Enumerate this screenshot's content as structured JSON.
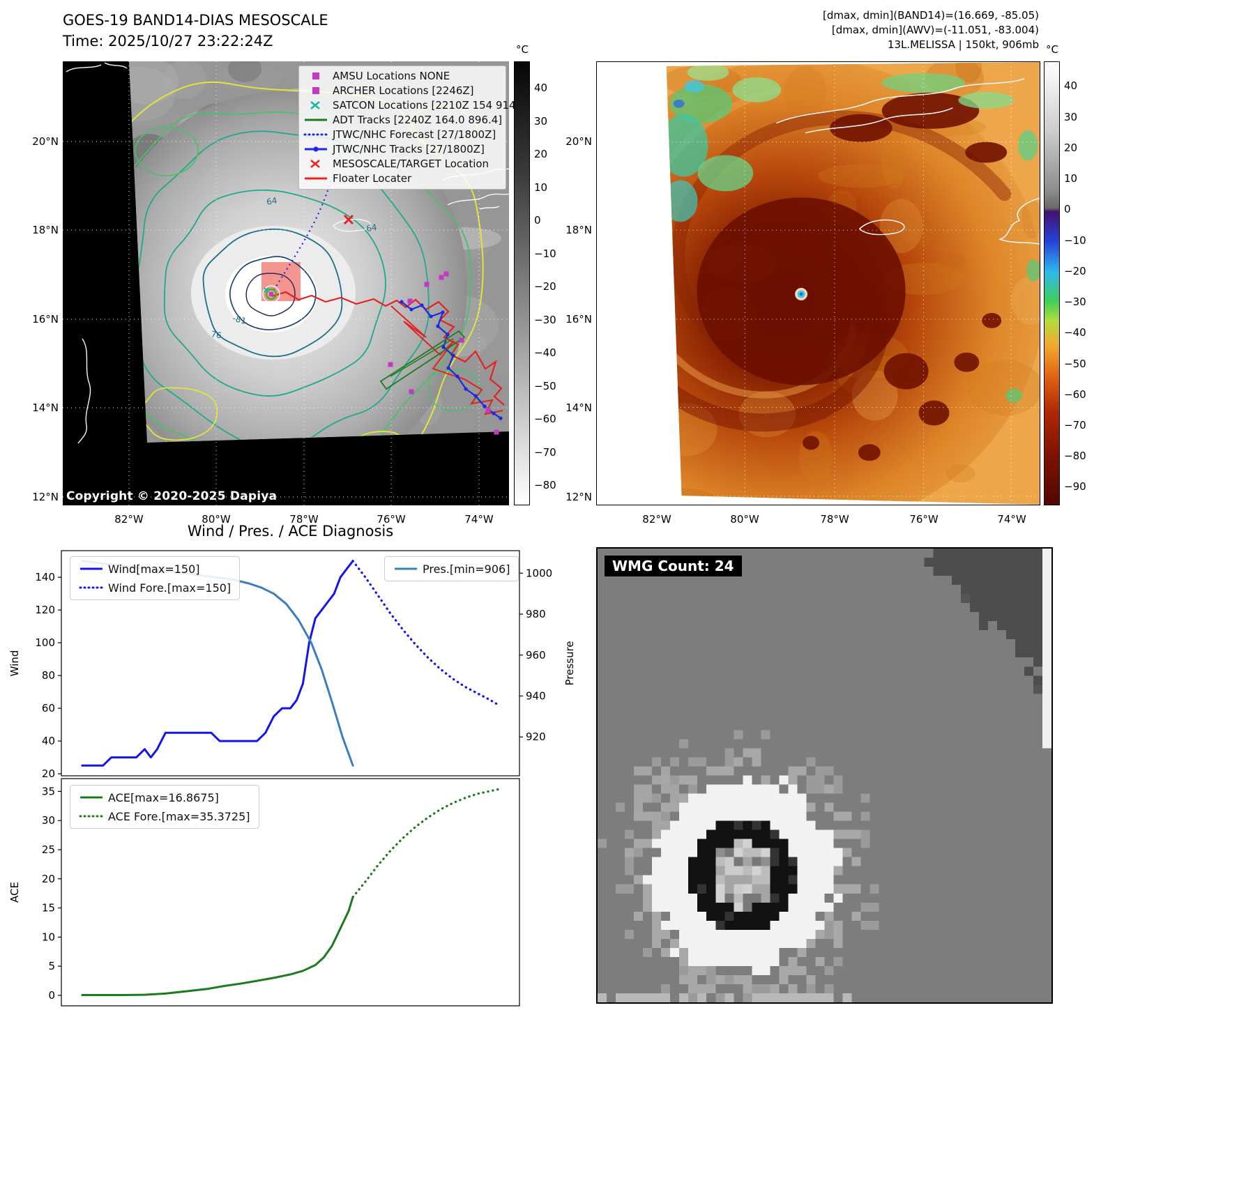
{
  "header_left": {
    "title": "GOES-19 BAND14-DIAS MESOSCALE",
    "time": "Time: 2025/10/27 23:22:24Z"
  },
  "header_right": {
    "line1": "[dmax, dmin](BAND14)=(16.669, -85.05)",
    "line2": "[dmax, dmin](AWV)=(-11.051, -83.004)",
    "line3": "13L.MELISSA | 150kt, 906mb"
  },
  "map_left": {
    "copyright": "Copyright © 2020-2025 Dapiya",
    "lat_ticks": [
      "20°N",
      "18°N",
      "16°N",
      "14°N",
      "12°N"
    ],
    "lon_ticks": [
      "82°W",
      "80°W",
      "78°W",
      "76°W",
      "74°W"
    ],
    "contour_labels": [
      "64",
      "-81",
      "76",
      "64"
    ],
    "legend": [
      {
        "label": "AMSU Locations NONE",
        "marker": "square",
        "color": "#c339c3"
      },
      {
        "label": "ARCHER Locations [2246Z]",
        "marker": "square",
        "color": "#c339c3"
      },
      {
        "label": "SATCON Locations [2210Z 154 914]",
        "marker": "x",
        "color": "#17b8a6"
      },
      {
        "label": "ADT Tracks [2240Z 164.0 896.4]",
        "marker": "line",
        "color": "#1f7a1f"
      },
      {
        "label": "JTWC/NHC Forecast [27/1800Z]",
        "marker": "dotted",
        "color": "#2222ee"
      },
      {
        "label": "JTWC/NHC Tracks [27/1800Z]",
        "marker": "line-dot",
        "color": "#2222ee"
      },
      {
        "label": "MESOSCALE/TARGET Location",
        "marker": "x",
        "color": "#ee2222"
      },
      {
        "label": "Floater Locater",
        "marker": "line",
        "color": "#ee2222"
      }
    ],
    "colorbar": {
      "unit": "°C",
      "vmax": 48,
      "vmin": -86,
      "ticks": [
        40,
        30,
        20,
        10,
        0,
        -10,
        -20,
        -30,
        -40,
        -50,
        -60,
        -70,
        -80
      ]
    }
  },
  "map_right": {
    "lat_ticks": [
      "20°N",
      "18°N",
      "16°N",
      "14°N",
      "12°N"
    ],
    "lon_ticks": [
      "82°W",
      "80°W",
      "78°W",
      "76°W",
      "74°W"
    ],
    "colorbar": {
      "unit": "°C",
      "vmax": 48,
      "vmin": -96,
      "ticks": [
        40,
        30,
        20,
        10,
        0,
        -10,
        -20,
        -30,
        -40,
        -50,
        -60,
        -70,
        -80,
        -90
      ]
    }
  },
  "charts_title": "Wind / Pres. / ACE Diagnosis",
  "chart_data": [
    {
      "type": "line",
      "ylabel_left": "Wind",
      "ylabel_right": "Pressure",
      "xlim": [
        -0.05,
        1.05
      ],
      "ylim_left": [
        18.75,
        156.25
      ],
      "ylim_right": [
        901,
        1011
      ],
      "yticks_left": [
        20,
        40,
        60,
        80,
        100,
        120,
        140
      ],
      "yticks_right": [
        920,
        940,
        960,
        980,
        1000
      ],
      "legend_left": [
        {
          "label": "Wind[max=150]",
          "style": "line",
          "color": "#1515e8"
        },
        {
          "label": "Wind Fore.[max=150]",
          "style": "dotted",
          "color": "#1515e8"
        }
      ],
      "legend_right": [
        {
          "label": "Pres.[min=906]",
          "style": "line",
          "color": "#3a7ebf"
        }
      ],
      "series": [
        {
          "name": "Wind",
          "axis": "left",
          "style": "solid",
          "color": "#1515e8",
          "width": 3,
          "x": [
            0,
            0.025,
            0.05,
            0.07,
            0.09,
            0.11,
            0.13,
            0.15,
            0.165,
            0.18,
            0.2,
            0.22,
            0.25,
            0.28,
            0.31,
            0.33,
            0.36,
            0.39,
            0.42,
            0.44,
            0.46,
            0.48,
            0.5,
            0.515,
            0.53,
            0.545,
            0.56,
            0.575,
            0.59,
            0.605,
            0.62,
            0.635,
            0.65
          ],
          "y": [
            25,
            25,
            25,
            30,
            30,
            30,
            30,
            35,
            30,
            35,
            45,
            45,
            45,
            45,
            45,
            40,
            40,
            40,
            40,
            45,
            55,
            60,
            60,
            65,
            75,
            100,
            115,
            120,
            125,
            130,
            140,
            145,
            150
          ]
        },
        {
          "name": "Wind Fore.",
          "axis": "left",
          "style": "dotted",
          "color": "#1515e8",
          "width": 3.2,
          "x": [
            0.65,
            0.68,
            0.71,
            0.74,
            0.77,
            0.8,
            0.83,
            0.86,
            0.89,
            0.92,
            0.95,
            0.98,
            1.0
          ],
          "y": [
            150,
            140,
            129,
            118,
            108,
            99,
            91,
            84,
            78,
            73,
            69,
            65,
            62
          ]
        },
        {
          "name": "Pres.",
          "axis": "right",
          "style": "solid",
          "color": "#3a7ebf",
          "width": 3,
          "x": [
            0,
            0.04,
            0.08,
            0.12,
            0.16,
            0.2,
            0.24,
            0.28,
            0.32,
            0.36,
            0.4,
            0.43,
            0.46,
            0.49,
            0.52,
            0.55,
            0.575,
            0.6,
            0.625,
            0.65
          ],
          "y": [
            1006,
            1005,
            1004,
            1003,
            1002,
            1001,
            1000,
            999,
            998,
            997,
            995,
            993,
            990,
            985,
            977,
            966,
            953,
            937,
            920,
            906
          ]
        }
      ]
    },
    {
      "type": "line",
      "ylabel_left": "ACE",
      "xlim": [
        -0.05,
        1.05
      ],
      "ylim_left": [
        -1.8,
        37.2
      ],
      "yticks_left": [
        0,
        5,
        10,
        15,
        20,
        25,
        30,
        35
      ],
      "legend_left": [
        {
          "label": "ACE[max=16.8675]",
          "style": "line",
          "color": "#1d7a1d"
        },
        {
          "label": "ACE Fore.[max=35.3725]",
          "style": "dotted",
          "color": "#1d7a1d"
        }
      ],
      "series": [
        {
          "name": "ACE",
          "axis": "left",
          "style": "solid",
          "color": "#1d7a1d",
          "width": 3,
          "x": [
            0,
            0.05,
            0.1,
            0.15,
            0.2,
            0.25,
            0.3,
            0.34,
            0.38,
            0.42,
            0.46,
            0.5,
            0.53,
            0.56,
            0.58,
            0.6,
            0.62,
            0.64,
            0.65
          ],
          "y": [
            0.05,
            0.05,
            0.05,
            0.1,
            0.3,
            0.7,
            1.1,
            1.6,
            2.0,
            2.5,
            3.0,
            3.6,
            4.2,
            5.2,
            6.5,
            8.5,
            11.5,
            14.5,
            16.87
          ]
        },
        {
          "name": "ACE Fore.",
          "axis": "left",
          "style": "dotted",
          "color": "#1d7a1d",
          "width": 3.2,
          "x": [
            0.65,
            0.68,
            0.71,
            0.74,
            0.77,
            0.8,
            0.83,
            0.86,
            0.89,
            0.92,
            0.95,
            1.0
          ],
          "y": [
            16.87,
            19.5,
            22.3,
            24.8,
            27.0,
            28.9,
            30.5,
            31.9,
            33.0,
            33.9,
            34.6,
            35.37
          ]
        }
      ]
    }
  ],
  "wmg": {
    "label": "WMG Count: 24"
  },
  "colors": {
    "track_red": "#e32222",
    "track_blue": "#1a2ae0",
    "track_green": "#1f7a1f",
    "marker_magenta": "#c339c3",
    "marker_cyan": "#17b8a6",
    "target_box_salmon": "#f2837d",
    "storm_dark": "#7a1400"
  }
}
